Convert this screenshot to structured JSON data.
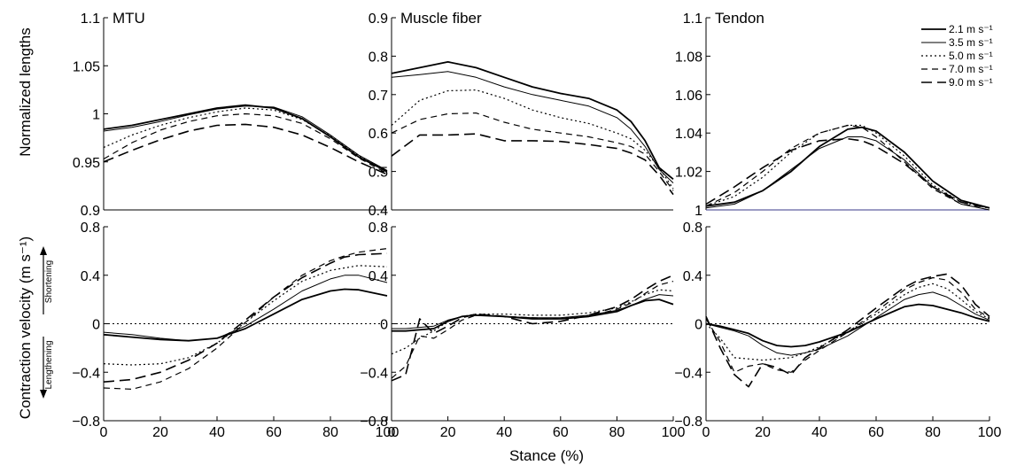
{
  "chart_data": {
    "type": "line",
    "xlabel": "Stance (%)",
    "row_labels": {
      "top": "Normalized lengths",
      "bottom": "Contraction velocity (m s⁻¹)",
      "shortening": "Shortening",
      "lengthening": "Lengthening"
    },
    "legend": [
      {
        "name": "2.1 m s⁻¹",
        "color": "#000000",
        "dash": "solid",
        "width": 1.8
      },
      {
        "name": "3.5 m s⁻¹",
        "color": "#000000",
        "dash": "solid",
        "width": 1.0
      },
      {
        "name": "5.0 m s⁻¹",
        "color": "#000000",
        "dash": "dotted",
        "width": 1.2
      },
      {
        "name": "7.0 m s⁻¹",
        "color": "#000000",
        "dash": "dashed",
        "width": 1.2
      },
      {
        "name": "9.0 m s⁻¹",
        "color": "#000000",
        "dash": "longdash",
        "width": 1.6
      }
    ],
    "panels": [
      {
        "title": "MTU",
        "row": 0,
        "col": 0,
        "xlim": [
          0,
          100
        ],
        "ylim": [
          0.9,
          1.1
        ],
        "xticks": [],
        "yticks": [
          0.9,
          0.95,
          1,
          1.05,
          1.1
        ],
        "ytick_labels": [
          "0.9",
          "0.95",
          "1",
          "1.05",
          "1.1"
        ],
        "x": [
          0,
          10,
          20,
          30,
          40,
          50,
          60,
          70,
          80,
          90,
          100
        ],
        "series": [
          {
            "values": [
              0.984,
              0.988,
              0.994,
              1.0,
              1.006,
              1.009,
              1.006,
              0.995,
              0.976,
              0.955,
              0.94
            ]
          },
          {
            "values": [
              0.982,
              0.986,
              0.992,
              0.999,
              1.005,
              1.008,
              1.007,
              0.997,
              0.978,
              0.957,
              0.941
            ]
          },
          {
            "values": [
              0.965,
              0.978,
              0.988,
              0.996,
              1.002,
              1.006,
              1.004,
              0.994,
              0.977,
              0.956,
              0.94
            ]
          },
          {
            "values": [
              0.953,
              0.97,
              0.983,
              0.992,
              0.998,
              1.0,
              0.998,
              0.99,
              0.974,
              0.954,
              0.938
            ]
          },
          {
            "values": [
              0.95,
              0.962,
              0.973,
              0.982,
              0.988,
              0.989,
              0.986,
              0.978,
              0.965,
              0.95,
              0.937
            ]
          }
        ]
      },
      {
        "title": "Muscle fiber",
        "row": 0,
        "col": 1,
        "xlim": [
          0,
          100
        ],
        "ylim": [
          0.4,
          0.9
        ],
        "xticks": [],
        "yticks": [
          0.4,
          0.5,
          0.6,
          0.7,
          0.8,
          0.9
        ],
        "ytick_labels": [
          "0.4",
          "0.5",
          "0.6",
          "0.7",
          "0.8",
          "0.9"
        ],
        "x": [
          0,
          10,
          20,
          30,
          40,
          50,
          60,
          70,
          80,
          85,
          90,
          95,
          100
        ],
        "series": [
          {
            "values": [
              0.755,
              0.77,
              0.785,
              0.77,
              0.745,
              0.72,
              0.703,
              0.69,
              0.66,
              0.63,
              0.58,
              0.51,
              0.48
            ]
          },
          {
            "values": [
              0.745,
              0.752,
              0.76,
              0.745,
              0.72,
              0.7,
              0.685,
              0.67,
              0.64,
              0.61,
              0.565,
              0.505,
              0.47
            ]
          },
          {
            "values": [
              0.62,
              0.685,
              0.71,
              0.712,
              0.69,
              0.66,
              0.64,
              0.625,
              0.6,
              0.585,
              0.555,
              0.51,
              0.455
            ]
          },
          {
            "values": [
              0.6,
              0.635,
              0.65,
              0.652,
              0.628,
              0.61,
              0.6,
              0.59,
              0.575,
              0.565,
              0.545,
              0.5,
              0.45
            ]
          },
          {
            "values": [
              0.54,
              0.595,
              0.595,
              0.598,
              0.58,
              0.58,
              0.578,
              0.57,
              0.56,
              0.548,
              0.53,
              0.49,
              0.44
            ]
          }
        ]
      },
      {
        "title": "Tendon",
        "row": 0,
        "col": 2,
        "xlim": [
          0,
          100
        ],
        "ylim": [
          1.0,
          1.1
        ],
        "xticks": [],
        "yticks": [
          1.0,
          1.02,
          1.04,
          1.06,
          1.08,
          1.1
        ],
        "ytick_labels": [
          "1",
          "1.02",
          "1.04",
          "1.06",
          "1.08",
          "1.1"
        ],
        "hline": 1.0,
        "x": [
          0,
          10,
          20,
          30,
          40,
          50,
          55,
          60,
          70,
          80,
          90,
          100
        ],
        "series": [
          {
            "values": [
              1.002,
              1.004,
              1.01,
              1.02,
              1.033,
              1.042,
              1.043,
              1.041,
              1.03,
              1.015,
              1.005,
              1.001
            ]
          },
          {
            "values": [
              1.001,
              1.003,
              1.01,
              1.021,
              1.032,
              1.038,
              1.038,
              1.036,
              1.026,
              1.012,
              1.003,
              1.0
            ]
          },
          {
            "values": [
              1.002,
              1.007,
              1.017,
              1.03,
              1.04,
              1.044,
              1.044,
              1.04,
              1.028,
              1.013,
              1.004,
              1.001
            ]
          },
          {
            "values": [
              1.002,
              1.009,
              1.02,
              1.032,
              1.04,
              1.044,
              1.043,
              1.038,
              1.025,
              1.011,
              1.003,
              1.001
            ]
          },
          {
            "values": [
              1.003,
              1.012,
              1.022,
              1.031,
              1.036,
              1.037,
              1.036,
              1.033,
              1.024,
              1.012,
              1.004,
              1.001
            ]
          }
        ]
      },
      {
        "row": 1,
        "col": 0,
        "xlim": [
          0,
          100
        ],
        "ylim": [
          -0.8,
          0.8
        ],
        "xticks": [
          0,
          20,
          40,
          60,
          80,
          100
        ],
        "yticks": [
          -0.8,
          -0.4,
          0,
          0.4,
          0.8
        ],
        "ytick_labels": [
          "−0.8",
          "−0.4",
          "0",
          "0.4",
          "0.8"
        ],
        "zero_line": true,
        "x": [
          0,
          10,
          20,
          30,
          40,
          50,
          60,
          70,
          80,
          85,
          90,
          100
        ],
        "series": [
          {
            "values": [
              -0.09,
              -0.11,
              -0.13,
              -0.14,
              -0.12,
              -0.04,
              0.08,
              0.2,
              0.27,
              0.285,
              0.28,
              0.23
            ]
          },
          {
            "values": [
              -0.07,
              -0.09,
              -0.12,
              -0.14,
              -0.12,
              -0.02,
              0.12,
              0.27,
              0.37,
              0.4,
              0.4,
              0.34
            ]
          },
          {
            "values": [
              -0.33,
              -0.34,
              -0.33,
              -0.28,
              -0.16,
              0.01,
              0.19,
              0.35,
              0.44,
              0.46,
              0.48,
              0.47
            ]
          },
          {
            "values": [
              -0.53,
              -0.54,
              -0.48,
              -0.37,
              -0.2,
              0.01,
              0.22,
              0.4,
              0.52,
              0.56,
              0.59,
              0.62
            ]
          },
          {
            "values": [
              -0.48,
              -0.46,
              -0.4,
              -0.3,
              -0.16,
              0.03,
              0.22,
              0.38,
              0.5,
              0.55,
              0.57,
              0.58
            ]
          }
        ]
      },
      {
        "row": 1,
        "col": 1,
        "xlim": [
          0,
          100
        ],
        "ylim": [
          -0.8,
          0.8
        ],
        "xticks": [
          0,
          20,
          40,
          60,
          80,
          100
        ],
        "yticks": [
          -0.8,
          -0.4,
          0,
          0.4,
          0.8
        ],
        "ytick_labels": [
          "−0.8",
          "−0.4",
          "0",
          "0.4",
          "0.8"
        ],
        "zero_line": true,
        "x": [
          0,
          5,
          10,
          15,
          20,
          25,
          30,
          40,
          50,
          60,
          70,
          80,
          85,
          90,
          95,
          100
        ],
        "series": [
          {
            "values": [
              -0.06,
              -0.06,
              -0.05,
              -0.04,
              0.02,
              0.06,
              0.07,
              0.06,
              0.04,
              0.04,
              0.06,
              0.1,
              0.15,
              0.19,
              0.2,
              0.16
            ]
          },
          {
            "values": [
              -0.04,
              -0.04,
              -0.03,
              -0.02,
              0.03,
              0.06,
              0.07,
              0.06,
              0.05,
              0.05,
              0.07,
              0.11,
              0.15,
              0.2,
              0.24,
              0.23
            ]
          },
          {
            "values": [
              -0.25,
              -0.2,
              -0.12,
              -0.06,
              0.02,
              0.06,
              0.08,
              0.08,
              0.07,
              0.07,
              0.09,
              0.13,
              0.18,
              0.24,
              0.28,
              0.27
            ]
          },
          {
            "values": [
              -0.45,
              -0.35,
              -0.1,
              -0.12,
              -0.05,
              0.03,
              0.07,
              0.06,
              0.05,
              0.04,
              0.06,
              0.12,
              0.17,
              0.25,
              0.32,
              0.35
            ]
          },
          {
            "values": [
              -0.47,
              -0.42,
              0.04,
              -0.08,
              -0.02,
              0.05,
              0.08,
              0.06,
              0.0,
              0.02,
              0.07,
              0.14,
              0.2,
              0.28,
              0.35,
              0.4
            ]
          }
        ]
      },
      {
        "row": 1,
        "col": 2,
        "xlim": [
          0,
          100
        ],
        "ylim": [
          -0.8,
          0.8
        ],
        "xticks": [
          0,
          20,
          40,
          60,
          80,
          100
        ],
        "yticks": [
          -0.8,
          -0.4,
          0,
          0.4,
          0.8
        ],
        "ytick_labels": [
          "−0.8",
          "−0.4",
          "0",
          "0.4",
          "0.8"
        ],
        "zero_line": true,
        "x": [
          0,
          5,
          10,
          15,
          20,
          25,
          30,
          35,
          40,
          50,
          60,
          70,
          75,
          80,
          85,
          90,
          95,
          100
        ],
        "series": [
          {
            "values": [
              0.0,
              -0.02,
              -0.05,
              -0.08,
              -0.14,
              -0.18,
              -0.19,
              -0.18,
              -0.15,
              -0.07,
              0.04,
              0.14,
              0.16,
              0.15,
              0.12,
              0.09,
              0.05,
              0.02
            ]
          },
          {
            "values": [
              0.0,
              -0.03,
              -0.06,
              -0.1,
              -0.18,
              -0.24,
              -0.26,
              -0.24,
              -0.21,
              -0.1,
              0.05,
              0.2,
              0.24,
              0.26,
              0.22,
              0.15,
              0.08,
              0.03
            ]
          },
          {
            "values": [
              0.0,
              -0.12,
              -0.28,
              -0.29,
              -0.3,
              -0.29,
              -0.28,
              -0.24,
              -0.19,
              -0.07,
              0.08,
              0.24,
              0.3,
              0.33,
              0.29,
              0.2,
              0.1,
              0.04
            ]
          },
          {
            "values": [
              0.04,
              -0.15,
              -0.4,
              -0.35,
              -0.33,
              -0.38,
              -0.4,
              -0.3,
              -0.22,
              -0.07,
              0.1,
              0.28,
              0.34,
              0.38,
              0.36,
              0.26,
              0.12,
              0.05
            ]
          },
          {
            "values": [
              0.06,
              -0.2,
              -0.42,
              -0.52,
              -0.33,
              -0.36,
              -0.42,
              -0.28,
              -0.2,
              -0.05,
              0.13,
              0.3,
              0.36,
              0.39,
              0.41,
              0.32,
              0.16,
              0.06
            ]
          }
        ]
      }
    ]
  }
}
